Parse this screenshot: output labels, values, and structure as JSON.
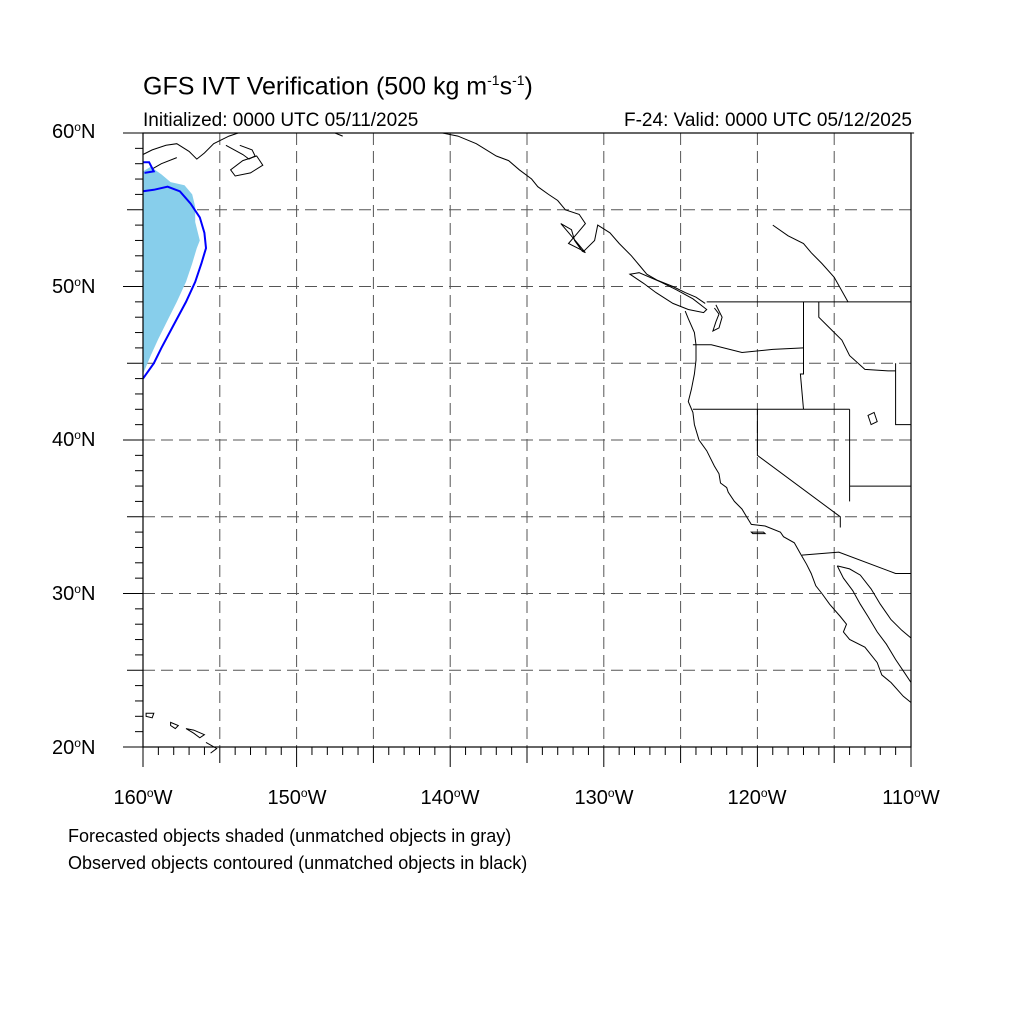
{
  "title": {
    "main": "GFS IVT Verification (500 kg m",
    "exp1": "-1",
    "mid": "s",
    "exp2": "-1",
    "end": ")"
  },
  "subtitle": {
    "initialized": "Initialized: 0000 UTC 05/11/2025",
    "valid": "F-24: Valid: 0000 UTC 05/12/2025"
  },
  "axes": {
    "lat_labels": [
      {
        "value": 60,
        "num": "60",
        "suffix": "N"
      },
      {
        "value": 50,
        "num": "50",
        "suffix": "N"
      },
      {
        "value": 40,
        "num": "40",
        "suffix": "N"
      },
      {
        "value": 30,
        "num": "30",
        "suffix": "N"
      },
      {
        "value": 20,
        "num": "20",
        "suffix": "N"
      }
    ],
    "lon_labels": [
      {
        "value": -160,
        "num": "160",
        "suffix": "W"
      },
      {
        "value": -150,
        "num": "150",
        "suffix": "W"
      },
      {
        "value": -140,
        "num": "140",
        "suffix": "W"
      },
      {
        "value": -130,
        "num": "130",
        "suffix": "W"
      },
      {
        "value": -120,
        "num": "120",
        "suffix": "W"
      },
      {
        "value": -110,
        "num": "110",
        "suffix": "W"
      }
    ],
    "lon_range": [
      -160,
      -110
    ],
    "lat_range": [
      20,
      60
    ],
    "grid_step_deg": 5,
    "grid_style": "dashed gray"
  },
  "notes": [
    "Forecasted objects shaded (unmatched objects in gray)",
    "Observed objects contoured (unmatched objects in black)"
  ],
  "objects": {
    "forecast_fill_color": "#87ceeb",
    "observed_contour_color": "#0000ff",
    "forecast_region": [
      [
        -160,
        57.5
      ],
      [
        -159.5,
        57.8
      ],
      [
        -158.8,
        57.3
      ],
      [
        -158.2,
        56.8
      ],
      [
        -157.3,
        56.6
      ],
      [
        -156.8,
        56
      ],
      [
        -156.6,
        55.2
      ],
      [
        -156.6,
        54.2
      ],
      [
        -156.3,
        53
      ],
      [
        -156.5,
        52.5
      ],
      [
        -156.8,
        51.5
      ],
      [
        -157.2,
        50.3
      ],
      [
        -157.8,
        49
      ],
      [
        -158.4,
        47.8
      ],
      [
        -159,
        46.6
      ],
      [
        -159.5,
        45.5
      ],
      [
        -160,
        44.3
      ]
    ],
    "observed_contour": [
      [
        -160,
        44
      ],
      [
        -159.3,
        45
      ],
      [
        -158.8,
        46
      ],
      [
        -158,
        47.5
      ],
      [
        -157.2,
        49
      ],
      [
        -156.6,
        50.3
      ],
      [
        -156.2,
        51.5
      ],
      [
        -155.9,
        52.5
      ],
      [
        -156,
        53.5
      ],
      [
        -156.3,
        54.5
      ],
      [
        -156.9,
        55.4
      ],
      [
        -157.6,
        56.2
      ],
      [
        -158.4,
        56.5
      ],
      [
        -159.3,
        56.3
      ],
      [
        -160,
        56.2
      ]
    ],
    "observed_contour_2": [
      [
        -160,
        58.1
      ],
      [
        -159.6,
        58.1
      ],
      [
        -159.3,
        57.5
      ],
      [
        -159.9,
        57.4
      ]
    ]
  },
  "colors": {
    "coastline": "#000000",
    "grid": "#555555",
    "forecast": "#87ceeb",
    "observed": "#0000ff"
  }
}
